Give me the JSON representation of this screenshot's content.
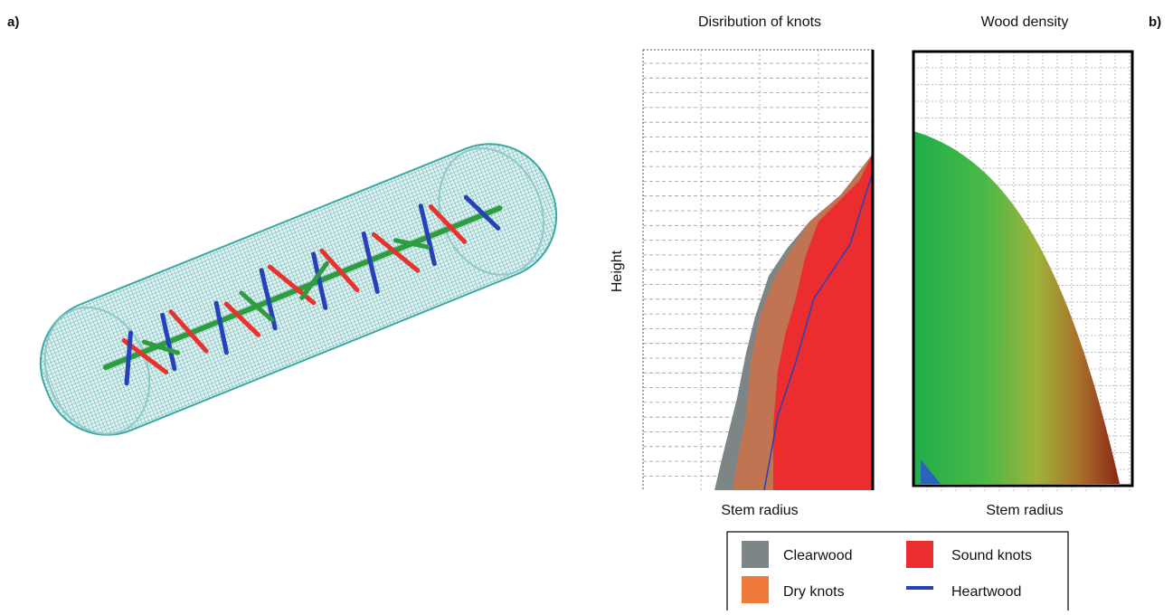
{
  "panels": {
    "a": {
      "label": "a)"
    },
    "b": {
      "label": "b)"
    }
  },
  "knots_chart": {
    "title": "Disribution of knots",
    "x_label": "Stem radius",
    "y_label": "Height"
  },
  "density_chart": {
    "title": "Wood density",
    "x_label": "Stem radius"
  },
  "legend": {
    "items": [
      "Clearwood",
      "Sound knots",
      "Dry knots",
      "Heartwood"
    ]
  }
}
